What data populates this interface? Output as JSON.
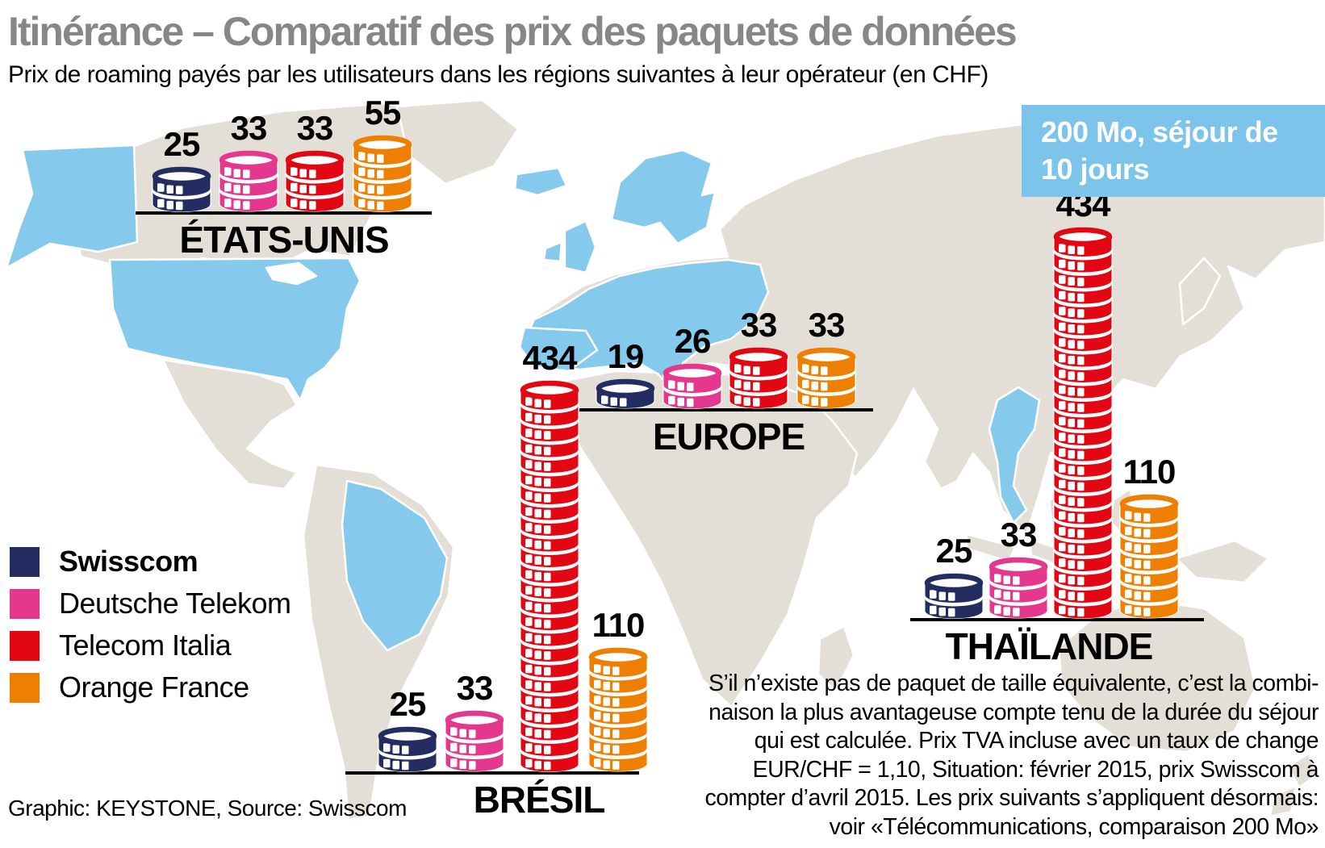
{
  "header": {
    "title": "Itinérance – Comparatif des prix des paquets de données",
    "subtitle": "Prix de roaming payés par les utilisateurs dans les régions suivantes à leur opérateur (en CHF)"
  },
  "note_box": {
    "line1": "200 Mo, séjour de",
    "line2": "10 jours",
    "bg_color": "#7CC4EA"
  },
  "legend": [
    {
      "label": "Swisscom",
      "color": "#232D61",
      "bold": true
    },
    {
      "label": "Deutsche Telekom",
      "color": "#E6378E",
      "bold": false
    },
    {
      "label": "Telecom Italia",
      "color": "#E30613",
      "bold": false
    },
    {
      "label": "Orange France",
      "color": "#EE7F00",
      "bold": false
    }
  ],
  "chart_data": {
    "type": "bar",
    "title": "Itinérance – Comparatif des prix des paquets de données",
    "subtitle": "Prix de roaming payés par les utilisateurs dans les régions suivantes à leur opérateur (en CHF)",
    "unit": "CHF",
    "package": "200 Mo, séjour de 10 jours",
    "series_names": [
      "Swisscom",
      "Deutsche Telekom",
      "Telecom Italia",
      "Orange France"
    ],
    "series_colors": [
      "#232D61",
      "#E6378E",
      "#E30613",
      "#EE7F00"
    ],
    "regions": [
      {
        "name": "ÉTATS-UNIS",
        "values": [
          25,
          33,
          33,
          55
        ]
      },
      {
        "name": "EUROPE",
        "values": [
          19,
          26,
          33,
          33
        ]
      },
      {
        "name": "BRÉSIL",
        "values": [
          25,
          33,
          434,
          110
        ]
      },
      {
        "name": "THAÏLANDE",
        "values": [
          25,
          33,
          434,
          110
        ]
      }
    ],
    "legend_position": "left",
    "map_highlight_color": "#85C9ED",
    "map_land_color": "#E3DFD7"
  },
  "footnote": {
    "lines": [
      "S’il n’existe pas de paquet de taille équivalente, c’est la combi-",
      "naison la plus avantageuse compte tenu de la durée du séjour",
      "qui est calculée. Prix TVA incluse avec un taux de change",
      "EUR/CHF = 1,10, Situation: février 2015, prix Swisscom à",
      "compter d’avril 2015. Les prix suivants s’appliquent désormais:",
      "voir «Télécommunications, comparaison 200 Mo»"
    ]
  },
  "source": "Graphic: KEYSTONE, Source: Swisscom"
}
